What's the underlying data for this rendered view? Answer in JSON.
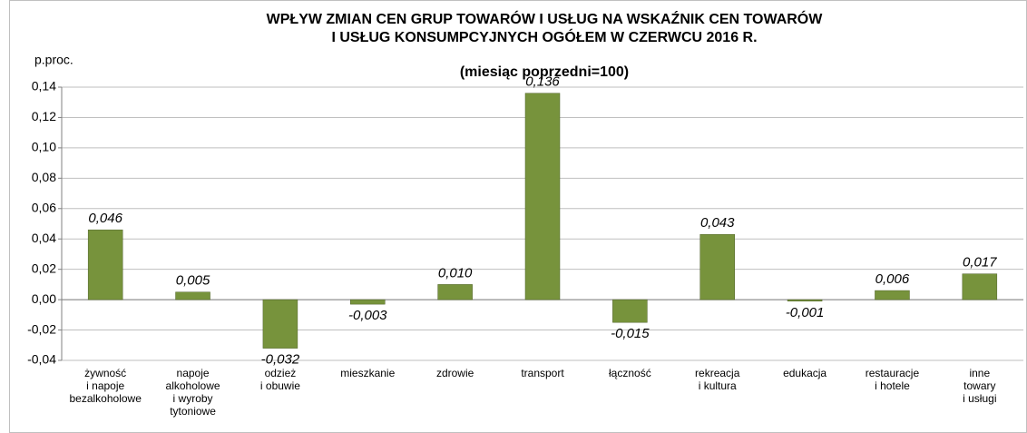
{
  "chart_data": {
    "type": "bar",
    "title": "WPŁYW ZMIAN CEN  GRUP TOWARÓW I USŁUG NA WSKAŹNIK CEN TOWARÓW\nI USŁUG KONSUMPCYJNYCH OGÓŁEM W CZERWCU 2016 R.",
    "subtitle": "(miesiąc poprzedni=100)",
    "y_label": "p.proc.",
    "categories": [
      "żywność\ni napoje\nbezalkoholowe",
      "napoje\nalkoholowe\ni wyroby\ntytoniowe",
      "odzież\ni obuwie",
      "mieszkanie",
      "zdrowie",
      "transport",
      "łączność",
      "rekreacja\ni kultura",
      "edukacja",
      "restauracje\ni hotele",
      "inne\ntowary\ni usługi"
    ],
    "values": [
      0.046,
      0.005,
      -0.032,
      -0.003,
      0.01,
      0.136,
      -0.015,
      0.043,
      -0.001,
      0.006,
      0.017
    ],
    "value_labels": [
      "0,046",
      "0,005",
      "-0,032",
      "-0,003",
      "0,010",
      "0,136",
      "-0,015",
      "0,043",
      "-0,001",
      "0,006",
      "0,017"
    ],
    "color": "#77933c",
    "ylim": [
      -0.04,
      0.14
    ],
    "yticks": [
      {
        "value": -0.04,
        "label": "-0,04"
      },
      {
        "value": -0.02,
        "label": "-0,02"
      },
      {
        "value": 0,
        "label": "0,00"
      },
      {
        "value": 0.02,
        "label": "0,02"
      },
      {
        "value": 0.04,
        "label": "0,04"
      },
      {
        "value": 0.06,
        "label": "0,06"
      },
      {
        "value": 0.08,
        "label": "0,08"
      },
      {
        "value": 0.1,
        "label": "0,10"
      },
      {
        "value": 0.12,
        "label": "0,12"
      },
      {
        "value": 0.14,
        "label": "0,14"
      }
    ],
    "grid": true
  }
}
